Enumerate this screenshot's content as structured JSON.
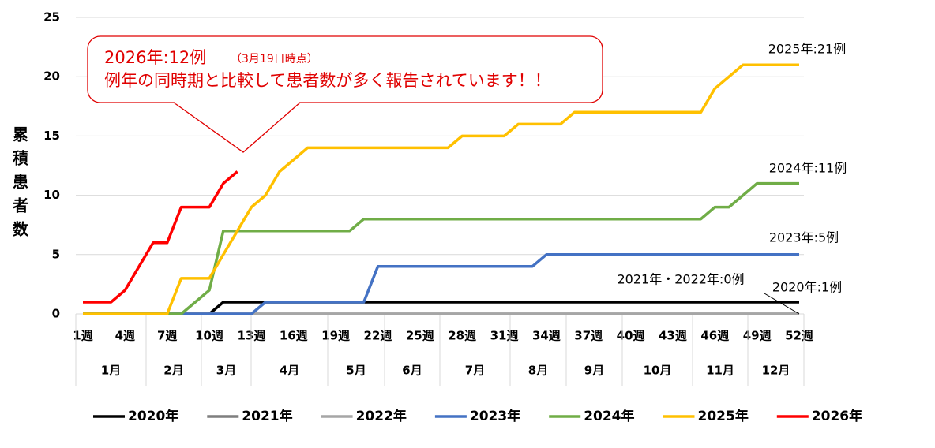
{
  "chart_data": {
    "type": "line",
    "y_label": "累積患者数",
    "x": [
      1,
      2,
      3,
      4,
      5,
      6,
      7,
      8,
      9,
      10,
      11,
      12,
      13,
      14,
      15,
      16,
      17,
      18,
      19,
      20,
      21,
      22,
      23,
      24,
      25,
      26,
      27,
      28,
      29,
      30,
      31,
      32,
      33,
      34,
      35,
      36,
      37,
      38,
      39,
      40,
      41,
      42,
      43,
      44,
      45,
      46,
      47,
      48,
      49,
      50,
      51,
      52
    ],
    "xlim": [
      1,
      52
    ],
    "xticks": [
      {
        "value": 1,
        "label": "1週"
      },
      {
        "value": 4,
        "label": "4週"
      },
      {
        "value": 7,
        "label": "7週"
      },
      {
        "value": 10,
        "label": "10週"
      },
      {
        "value": 13,
        "label": "13週"
      },
      {
        "value": 16,
        "label": "16週"
      },
      {
        "value": 19,
        "label": "19週"
      },
      {
        "value": 22,
        "label": "22週"
      },
      {
        "value": 25,
        "label": "25週"
      },
      {
        "value": 28,
        "label": "28週"
      },
      {
        "value": 31,
        "label": "31週"
      },
      {
        "value": 34,
        "label": "34週"
      },
      {
        "value": 37,
        "label": "37週"
      },
      {
        "value": 40,
        "label": "40週"
      },
      {
        "value": 43,
        "label": "43週"
      },
      {
        "value": 46,
        "label": "46週"
      },
      {
        "value": 49,
        "label": "49週"
      },
      {
        "value": 52,
        "label": "52週"
      }
    ],
    "months": [
      "1月",
      "2月",
      "3月",
      "4月",
      "5月",
      "6月",
      "7月",
      "8月",
      "9月",
      "10月",
      "11月",
      "12月"
    ],
    "ylim": [
      0,
      25
    ],
    "yticks": [
      0,
      5,
      10,
      15,
      20,
      25
    ],
    "grid": true,
    "series": [
      {
        "name": "2020年",
        "color": "#000000",
        "values": [
          0,
          0,
          0,
          0,
          0,
          0,
          0,
          0,
          0,
          0,
          1,
          1,
          1,
          1,
          1,
          1,
          1,
          1,
          1,
          1,
          1,
          1,
          1,
          1,
          1,
          1,
          1,
          1,
          1,
          1,
          1,
          1,
          1,
          1,
          1,
          1,
          1,
          1,
          1,
          1,
          1,
          1,
          1,
          1,
          1,
          1,
          1,
          1,
          1,
          1,
          1,
          1
        ]
      },
      {
        "name": "2021年",
        "color": "#7f7f7f",
        "values": [
          0,
          0,
          0,
          0,
          0,
          0,
          0,
          0,
          0,
          0,
          0,
          0,
          0,
          0,
          0,
          0,
          0,
          0,
          0,
          0,
          0,
          0,
          0,
          0,
          0,
          0,
          0,
          0,
          0,
          0,
          0,
          0,
          0,
          0,
          0,
          0,
          0,
          0,
          0,
          0,
          0,
          0,
          0,
          0,
          0,
          0,
          0,
          0,
          0,
          0,
          0,
          0
        ]
      },
      {
        "name": "2022年",
        "color": "#a6a6a6",
        "values": [
          0,
          0,
          0,
          0,
          0,
          0,
          0,
          0,
          0,
          0,
          0,
          0,
          0,
          0,
          0,
          0,
          0,
          0,
          0,
          0,
          0,
          0,
          0,
          0,
          0,
          0,
          0,
          0,
          0,
          0,
          0,
          0,
          0,
          0,
          0,
          0,
          0,
          0,
          0,
          0,
          0,
          0,
          0,
          0,
          0,
          0,
          0,
          0,
          0,
          0,
          0,
          0
        ]
      },
      {
        "name": "2023年",
        "color": "#4472c4",
        "values": [
          0,
          0,
          0,
          0,
          0,
          0,
          0,
          0,
          0,
          0,
          0,
          0,
          0,
          1,
          1,
          1,
          1,
          1,
          1,
          1,
          1,
          4,
          4,
          4,
          4,
          4,
          4,
          4,
          4,
          4,
          4,
          4,
          4,
          5,
          5,
          5,
          5,
          5,
          5,
          5,
          5,
          5,
          5,
          5,
          5,
          5,
          5,
          5,
          5,
          5,
          5,
          5
        ]
      },
      {
        "name": "2024年",
        "color": "#70ad47",
        "values": [
          0,
          0,
          0,
          0,
          0,
          0,
          0,
          0,
          1,
          2,
          7,
          7,
          7,
          7,
          7,
          7,
          7,
          7,
          7,
          7,
          8,
          8,
          8,
          8,
          8,
          8,
          8,
          8,
          8,
          8,
          8,
          8,
          8,
          8,
          8,
          8,
          8,
          8,
          8,
          8,
          8,
          8,
          8,
          8,
          8,
          9,
          9,
          10,
          11,
          11,
          11,
          11
        ]
      },
      {
        "name": "2025年",
        "color": "#ffc000",
        "values": [
          0,
          0,
          0,
          0,
          0,
          0,
          0,
          3,
          3,
          3,
          5,
          7,
          9,
          10,
          12,
          13,
          14,
          14,
          14,
          14,
          14,
          14,
          14,
          14,
          14,
          14,
          14,
          15,
          15,
          15,
          15,
          16,
          16,
          16,
          16,
          17,
          17,
          17,
          17,
          17,
          17,
          17,
          17,
          17,
          17,
          19,
          20,
          21,
          21,
          21,
          21,
          21
        ]
      },
      {
        "name": "2026年",
        "color": "#ff0000",
        "values": [
          1,
          1,
          1,
          2,
          4,
          6,
          6,
          9,
          9,
          9,
          11,
          12,
          null,
          null,
          null,
          null,
          null,
          null,
          null,
          null,
          null,
          null,
          null,
          null,
          null,
          null,
          null,
          null,
          null,
          null,
          null,
          null,
          null,
          null,
          null,
          null,
          null,
          null,
          null,
          null,
          null,
          null,
          null,
          null,
          null,
          null,
          null,
          null,
          null,
          null,
          null,
          null
        ]
      }
    ],
    "callout": {
      "title": "2026年:12例",
      "note": "（3月19日時点）",
      "text": "例年の同時期と比較して患者数が多く報告されています！！"
    },
    "end_labels": [
      "2025年:21例",
      "2024年:11例",
      "2023年:5例",
      "2021年・2022年:0例",
      "2020年:1例"
    ]
  }
}
